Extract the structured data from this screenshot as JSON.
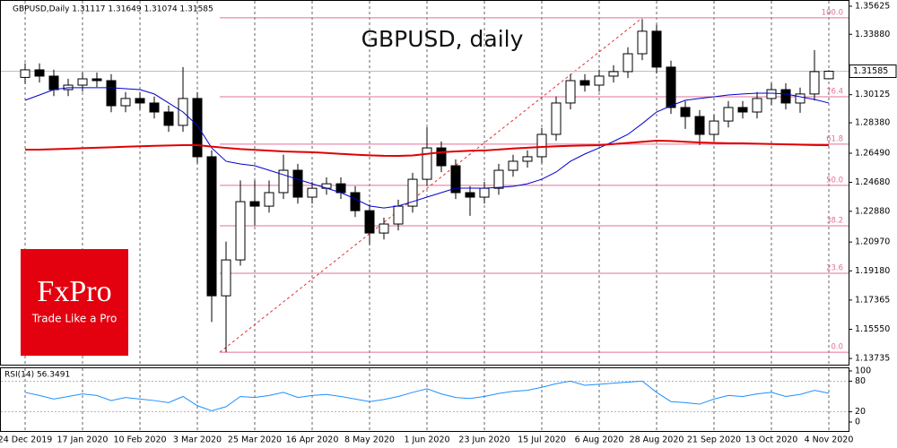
{
  "chart_data": [
    {
      "type": "candlestick",
      "title": "GBPUSD, daily",
      "header": "GBPUSD,Daily  1.31117 1.31649 1.31074 1.31585",
      "categories": [
        "24 Dec 2019",
        null,
        null,
        null,
        "17 Jan 2020",
        null,
        null,
        null,
        "10 Feb 2020",
        null,
        null,
        null,
        "3 Mar 2020",
        null,
        null,
        null,
        "25 Mar 2020",
        null,
        null,
        null,
        "16 Apr 2020",
        null,
        null,
        null,
        "8 May 2020",
        null,
        null,
        null,
        "1 Jun 2020",
        null,
        null,
        null,
        "23 Jun 2020",
        null,
        null,
        null,
        "15 Jul 2020",
        null,
        null,
        null,
        "6 Aug 2020",
        null,
        null,
        null,
        "28 Aug 2020",
        null,
        null,
        null,
        "21 Sep 2020",
        null,
        null,
        null,
        "13 Oct 2020",
        null,
        null,
        null,
        "4 Nov 2020"
      ],
      "open": [
        1.312,
        1.3167,
        1.3128,
        1.3044,
        1.3072,
        1.3111,
        1.31,
        1.2944,
        1.2989,
        1.2961,
        1.2905,
        1.2822,
        1.2989,
        1.2627,
        1.1763,
        1.1986,
        1.2348,
        1.232,
        1.2404,
        1.2543,
        1.2376,
        1.2431,
        1.2459,
        1.2404,
        1.2292,
        1.2153,
        1.2209,
        1.232,
        1.2487,
        1.2682,
        1.2571,
        1.2404,
        1.2376,
        1.2431,
        1.2543,
        1.2599,
        1.2627,
        1.2766,
        1.2961,
        1.31,
        1.3072,
        1.3128,
        1.3156,
        1.3267,
        1.3407,
        1.3184,
        1.2933,
        1.2877,
        1.2766,
        1.2849,
        1.2933,
        1.2905,
        1.2989,
        1.3044,
        1.2961,
        1.3017,
        1.31117
      ],
      "high": [
        1.3207,
        1.3207,
        1.3168,
        1.3112,
        1.3151,
        1.3151,
        1.314,
        1.3029,
        1.3029,
        1.3001,
        1.2945,
        1.3184,
        1.3029,
        1.2667,
        1.21,
        1.248,
        1.248,
        1.248,
        1.264,
        1.2583,
        1.2471,
        1.2499,
        1.2499,
        1.2444,
        1.2332,
        1.2249,
        1.236,
        1.2527,
        1.281,
        1.2722,
        1.2611,
        1.2444,
        1.2471,
        1.2583,
        1.2639,
        1.2667,
        1.2806,
        1.3001,
        1.314,
        1.314,
        1.3168,
        1.3196,
        1.3307,
        1.3482,
        1.3447,
        1.3224,
        1.2973,
        1.2917,
        1.2889,
        1.2973,
        1.2973,
        1.3029,
        1.3084,
        1.3084,
        1.3057,
        1.329,
        1.31649
      ],
      "low": [
        1.308,
        1.3088,
        1.3004,
        1.3004,
        1.3032,
        1.306,
        1.2904,
        1.2904,
        1.2921,
        1.2865,
        1.2782,
        1.2782,
        1.2587,
        1.16,
        1.1412,
        1.195,
        1.22,
        1.228,
        1.2364,
        1.2336,
        1.2336,
        1.2391,
        1.2364,
        1.2252,
        1.208,
        1.2113,
        1.2169,
        1.228,
        1.2447,
        1.2531,
        1.2364,
        1.226,
        1.2336,
        1.2391,
        1.2503,
        1.2559,
        1.2587,
        1.2726,
        1.2921,
        1.3032,
        1.3032,
        1.3088,
        1.3116,
        1.3227,
        1.3144,
        1.2893,
        1.28,
        1.27,
        1.2726,
        1.2809,
        1.2865,
        1.2865,
        1.2949,
        1.2921,
        1.29,
        1.2977,
        1.31074
      ],
      "close": [
        1.3167,
        1.3128,
        1.3044,
        1.3072,
        1.3111,
        1.31,
        1.2944,
        1.2989,
        1.2961,
        1.2905,
        1.2822,
        1.2989,
        1.2627,
        1.1763,
        1.1986,
        1.2348,
        1.232,
        1.2404,
        1.2543,
        1.2376,
        1.2431,
        1.2459,
        1.2404,
        1.2292,
        1.2153,
        1.2209,
        1.232,
        1.2487,
        1.2682,
        1.2571,
        1.2404,
        1.2376,
        1.2431,
        1.2543,
        1.2599,
        1.2627,
        1.2766,
        1.2961,
        1.31,
        1.3072,
        1.3128,
        1.3156,
        1.3267,
        1.3407,
        1.3184,
        1.2933,
        1.2877,
        1.2766,
        1.2849,
        1.2933,
        1.2905,
        1.2989,
        1.3044,
        1.2961,
        1.3017,
        1.3156,
        1.31585
      ],
      "lines": [
        {
          "color": "#0000cc",
          "values": [
            1.2978,
            1.3011,
            1.3044,
            1.3056,
            1.3056,
            1.3056,
            1.3056,
            1.305,
            1.3044,
            1.3017,
            1.2961,
            1.2905,
            1.2822,
            1.2682,
            1.2599,
            1.2582,
            1.2571,
            1.2543,
            1.2515,
            1.2487,
            1.2459,
            1.2432,
            1.2404,
            1.2365,
            1.2321,
            1.2309,
            1.2321,
            1.2348,
            1.2376,
            1.2404,
            1.2432,
            1.2432,
            1.2432,
            1.2437,
            1.2443,
            1.2459,
            1.2487,
            1.2532,
            1.2599,
            1.2644,
            1.2682,
            1.2722,
            1.2766,
            1.2833,
            1.2905,
            1.2944,
            1.2978,
            1.2989,
            1.3,
            1.3011,
            1.3017,
            1.3022,
            1.3022,
            1.3017,
            1.3,
            1.2983,
            1.2961
          ]
        },
        {
          "color": "#e00000",
          "values": [
            1.2671,
            1.2671,
            1.2674,
            1.2677,
            1.268,
            1.2683,
            1.2686,
            1.2689,
            1.2692,
            1.2695,
            1.2697,
            1.2699,
            1.2699,
            1.269,
            1.2682,
            1.2675,
            1.267,
            1.2665,
            1.266,
            1.2657,
            1.2655,
            1.265,
            1.2645,
            1.264,
            1.2636,
            1.2633,
            1.2632,
            1.2635,
            1.2645,
            1.2655,
            1.266,
            1.2664,
            1.2666,
            1.2672,
            1.2678,
            1.2683,
            1.2688,
            1.2692,
            1.2695,
            1.2697,
            1.2699,
            1.2706,
            1.2713,
            1.272,
            1.2727,
            1.2725,
            1.272,
            1.2716,
            1.2713,
            1.2711,
            1.271,
            1.2708,
            1.2706,
            1.2704,
            1.2702,
            1.27,
            1.2699
          ]
        }
      ],
      "fib_color": "#e0709a",
      "fib_levels": [
        {
          "label": "100.0",
          "value": 1.349
        },
        {
          "label": "76.4",
          "value": 1.3
        },
        {
          "label": "61.8",
          "value": 1.2705
        },
        {
          "label": "50.0",
          "value": 1.2449
        },
        {
          "label": "38.2",
          "value": 1.2198
        },
        {
          "label": "23.6",
          "value": 1.1903
        },
        {
          "label": "0.0",
          "value": 1.1412
        }
      ],
      "ylim": [
        1.1335,
        1.3601
      ],
      "yticks": [
        1.35625,
        {
          "value": 1.3388,
          "label": "1.33880"
        },
        1.30125,
        {
          "value": 1.2838,
          "label": "1.28380"
        },
        {
          "value": 1.2649,
          "label": "1.26490"
        },
        {
          "value": 1.2468,
          "label": "1.24680"
        },
        {
          "value": 1.2288,
          "label": "1.22880"
        },
        {
          "value": 1.2097,
          "label": "1.20970"
        },
        {
          "value": 1.1918,
          "label": "1.19180"
        },
        1.17365,
        {
          "value": 1.1555,
          "label": "1.15550"
        },
        1.13735
      ],
      "grid": true
    },
    {
      "type": "line",
      "title": "RSI(14) 56.3491",
      "color": "#1e90ff",
      "values": [
        58,
        52,
        45,
        50,
        55,
        52,
        42,
        48,
        45,
        42,
        38,
        50,
        32,
        22,
        30,
        50,
        48,
        52,
        58,
        48,
        52,
        54,
        50,
        45,
        40,
        44,
        50,
        58,
        65,
        55,
        48,
        46,
        50,
        56,
        60,
        62,
        68,
        75,
        80,
        72,
        74,
        76,
        78,
        80,
        58,
        40,
        38,
        35,
        45,
        52,
        50,
        55,
        58,
        50,
        54,
        62,
        56.3491
      ],
      "ylim": [
        0,
        100
      ],
      "yticks": [
        0,
        20,
        80,
        100
      ]
    }
  ],
  "watermark": {
    "logo": "FxPro",
    "tagline": "Trade Like a Pro"
  }
}
